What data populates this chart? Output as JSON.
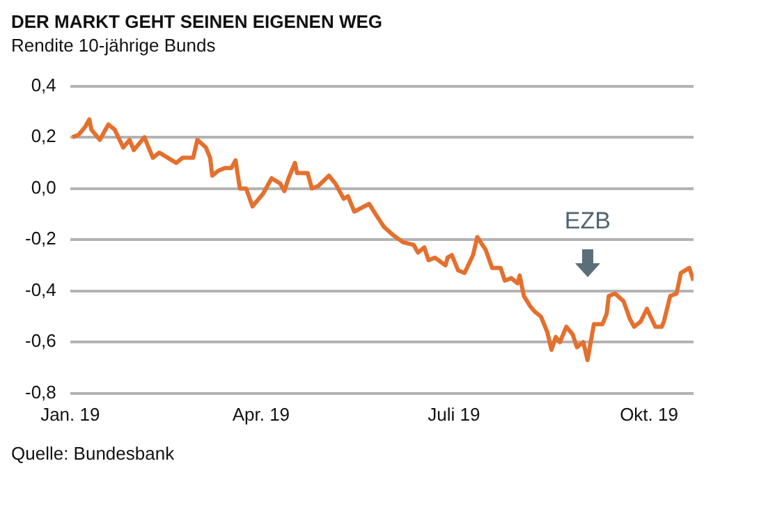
{
  "chart_data": {
    "type": "line",
    "title": "DER MARKT GEHT SEINEN EIGENEN WEG",
    "subtitle": "Rendite 10-jährige Bunds",
    "annotations": [
      "EZB",
      "Quelle: Bundesbank"
    ],
    "x": [
      "2019-01-02",
      "2019-01-05",
      "2019-01-08",
      "2019-01-10",
      "2019-01-11",
      "2019-01-15",
      "2019-01-19",
      "2019-01-22",
      "2019-01-26",
      "2019-01-29",
      "2019-01-31",
      "2019-02-02",
      "2019-02-05",
      "2019-02-09",
      "2019-02-12",
      "2019-02-20",
      "2019-02-23",
      "2019-02-28",
      "2019-03-02",
      "2019-03-06",
      "2019-03-08",
      "2019-03-09",
      "2019-03-12",
      "2019-03-15",
      "2019-03-18",
      "2019-03-20",
      "2019-03-22",
      "2019-03-25",
      "2019-03-28",
      "2019-04-02",
      "2019-04-06",
      "2019-04-10",
      "2019-04-12",
      "2019-04-14",
      "2019-04-17",
      "2019-04-18",
      "2019-04-23",
      "2019-04-25",
      "2019-04-28",
      "2019-05-03",
      "2019-05-06",
      "2019-05-10",
      "2019-05-12",
      "2019-05-15",
      "2019-05-22",
      "2019-05-25",
      "2019-05-29",
      "2019-06-02",
      "2019-06-07",
      "2019-06-12",
      "2019-06-14",
      "2019-06-17",
      "2019-06-19",
      "2019-06-22",
      "2019-06-27",
      "2019-06-28",
      "2019-06-30",
      "2019-07-03",
      "2019-07-06",
      "2019-07-10",
      "2019-07-12",
      "2019-07-16",
      "2019-07-19",
      "2019-07-23",
      "2019-07-25",
      "2019-07-28",
      "2019-07-31",
      "2019-08-01",
      "2019-08-03",
      "2019-08-06",
      "2019-08-08",
      "2019-08-11",
      "2019-08-14",
      "2019-08-16",
      "2019-08-18",
      "2019-08-20",
      "2019-08-23",
      "2019-08-26",
      "2019-08-28",
      "2019-08-31",
      "2019-09-02",
      "2019-09-05",
      "2019-09-09",
      "2019-09-11",
      "2019-09-12",
      "2019-09-15",
      "2019-09-19",
      "2019-09-22",
      "2019-09-24",
      "2019-09-27",
      "2019-09-30",
      "2019-10-04",
      "2019-10-07",
      "2019-10-08",
      "2019-10-11",
      "2019-10-14",
      "2019-10-16",
      "2019-10-18",
      "2019-10-20",
      "2019-10-22"
    ],
    "series": [
      {
        "color": "#e4702e",
        "values": [
          0.2,
          0.21,
          0.24,
          0.27,
          0.23,
          0.19,
          0.25,
          0.23,
          0.16,
          0.19,
          0.15,
          0.17,
          0.2,
          0.12,
          0.14,
          0.1,
          0.12,
          0.12,
          0.19,
          0.16,
          0.12,
          0.05,
          0.07,
          0.08,
          0.08,
          0.11,
          0.0,
          0.0,
          -0.07,
          -0.02,
          0.04,
          0.02,
          -0.01,
          0.04,
          0.1,
          0.06,
          0.06,
          0.0,
          0.01,
          0.05,
          0.02,
          -0.04,
          -0.03,
          -0.09,
          -0.06,
          -0.1,
          -0.15,
          -0.18,
          -0.21,
          -0.22,
          -0.25,
          -0.23,
          -0.28,
          -0.27,
          -0.3,
          -0.27,
          -0.26,
          -0.32,
          -0.33,
          -0.26,
          -0.19,
          -0.24,
          -0.31,
          -0.31,
          -0.36,
          -0.35,
          -0.37,
          -0.34,
          -0.42,
          -0.46,
          -0.48,
          -0.5,
          -0.56,
          -0.63,
          -0.58,
          -0.6,
          -0.54,
          -0.57,
          -0.62,
          -0.6,
          -0.67,
          -0.53,
          -0.53,
          -0.49,
          -0.42,
          -0.41,
          -0.44,
          -0.51,
          -0.54,
          -0.52,
          -0.47,
          -0.54,
          -0.54,
          -0.52,
          -0.42,
          -0.41,
          -0.33,
          -0.32,
          -0.31,
          -0.36
        ]
      }
    ],
    "xlim": [
      "2019-01-01",
      "2019-10-22"
    ],
    "xticks": [
      {
        "value": "2019-01-01",
        "label": "Jan. 19"
      },
      {
        "value": "2019-04-01",
        "label": "Apr. 19"
      },
      {
        "value": "2019-07-01",
        "label": "Juli 19"
      },
      {
        "value": "2019-10-01",
        "label": "Okt. 19"
      }
    ],
    "ylim": [
      -0.8,
      0.4
    ],
    "yticks": [
      {
        "value": -0.8,
        "label": "-0,8"
      },
      {
        "value": -0.6,
        "label": "-0,6"
      },
      {
        "value": -0.4,
        "label": "-0,4"
      },
      {
        "value": -0.2,
        "label": "-0,2"
      },
      {
        "value": 0,
        "label": "0,0"
      },
      {
        "value": 0.2,
        "label": "0,2"
      },
      {
        "value": 0.4,
        "label": "0,4"
      }
    ],
    "grid": "y",
    "marker": "none",
    "line_style": "solid",
    "legend": false
  }
}
